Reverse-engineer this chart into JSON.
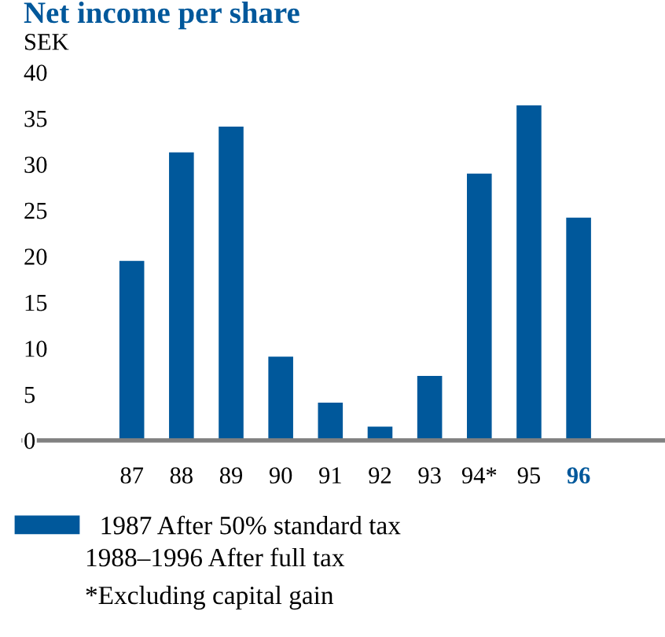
{
  "chart_data": {
    "type": "bar",
    "title": "Net income per share",
    "ylabel": "SEK",
    "categories": [
      "87",
      "88",
      "89",
      "90",
      "91",
      "92",
      "93",
      "94*",
      "95",
      "96"
    ],
    "series": [
      {
        "name": "1987 After 50% standard tax",
        "color": "#00589b",
        "values": [
          19.5,
          31.3,
          34.1,
          9.1,
          4.1,
          1.5,
          7.0,
          29.0,
          36.4,
          24.2
        ]
      }
    ],
    "ylim": [
      0,
      40
    ],
    "yticks": [
      0,
      5,
      10,
      15,
      20,
      25,
      30,
      35,
      40
    ],
    "grid": false,
    "legend": "bottom",
    "annotations": [
      "1988–1996 After full tax",
      "*Excluding capital gain"
    ]
  }
}
